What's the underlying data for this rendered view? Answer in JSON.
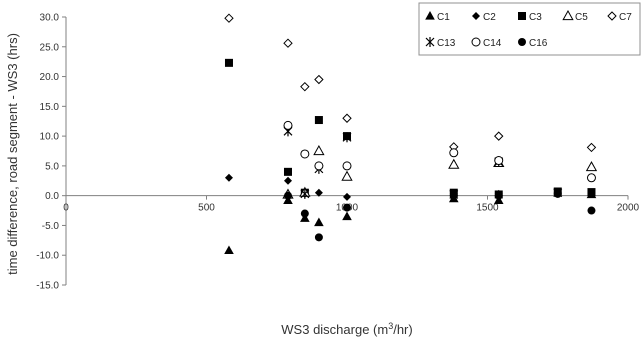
{
  "chart_data": {
    "type": "scatter",
    "xlabel": "WS3 discharge (m³/hr)",
    "ylabel": "time difference, road segment - WS3 (hrs)",
    "xlim": [
      0,
      2000
    ],
    "ylim": [
      -15,
      30
    ],
    "x_ticks": [
      0,
      500,
      1000,
      1500,
      2000
    ],
    "y_ticks": [
      30,
      25,
      20,
      15,
      10,
      5,
      0,
      -5,
      -10,
      -15
    ],
    "x_tick_labels": [
      "0",
      "500",
      "1000",
      "1500",
      "2000"
    ],
    "y_tick_labels": [
      "30.0",
      "25.0",
      "20.0",
      "15.0",
      "10.0",
      "5.0",
      "0.0",
      "-5.0",
      "-10.0",
      "-15.0"
    ],
    "legend_position": "top-right",
    "series": [
      {
        "name": "C1",
        "marker": "triangle-filled",
        "points": [
          [
            580,
            -9.2
          ],
          [
            790,
            -0.8
          ],
          [
            850,
            -3.8
          ],
          [
            900,
            -4.5
          ],
          [
            1000,
            -3.5
          ],
          [
            1380,
            -0.5
          ],
          [
            1540,
            -0.8
          ],
          [
            1870,
            0.2
          ]
        ]
      },
      {
        "name": "C2",
        "marker": "diamond-filled",
        "points": [
          [
            580,
            3.0
          ],
          [
            790,
            2.5
          ],
          [
            850,
            0.3
          ],
          [
            900,
            0.5
          ],
          [
            1000,
            -0.2
          ],
          [
            1380,
            0.3
          ],
          [
            1540,
            0.3
          ],
          [
            1750,
            0.5
          ],
          [
            1870,
            0.5
          ]
        ]
      },
      {
        "name": "C3",
        "marker": "square-filled",
        "points": [
          [
            580,
            22.3
          ],
          [
            790,
            4.0
          ],
          [
            850,
            0.5
          ],
          [
            900,
            12.7
          ],
          [
            1000,
            10.0
          ],
          [
            1380,
            0.5
          ],
          [
            1540,
            0.2
          ],
          [
            1750,
            0.7
          ],
          [
            1870,
            0.6
          ]
        ]
      },
      {
        "name": "C5",
        "marker": "triangle-open",
        "points": [
          [
            790,
            0.2
          ],
          [
            850,
            0.5
          ],
          [
            900,
            7.5
          ],
          [
            1000,
            3.2
          ],
          [
            1380,
            5.2
          ],
          [
            1540,
            5.5
          ],
          [
            1870,
            4.8
          ]
        ]
      },
      {
        "name": "C7",
        "marker": "diamond-open",
        "points": [
          [
            580,
            29.8
          ],
          [
            790,
            25.6
          ],
          [
            850,
            18.3
          ],
          [
            900,
            19.5
          ],
          [
            1000,
            13.0
          ],
          [
            1380,
            8.2
          ],
          [
            1540,
            10.0
          ],
          [
            1870,
            8.1
          ]
        ]
      },
      {
        "name": "C13",
        "marker": "asterisk",
        "points": [
          [
            790,
            10.8
          ],
          [
            850,
            0.3
          ],
          [
            900,
            4.5
          ],
          [
            1000,
            9.8
          ],
          [
            1380,
            0.2
          ],
          [
            1540,
            5.7
          ],
          [
            1750,
            0.5
          ]
        ]
      },
      {
        "name": "C14",
        "marker": "circle-open",
        "points": [
          [
            790,
            11.8
          ],
          [
            850,
            7.0
          ],
          [
            900,
            5.0
          ],
          [
            1000,
            5.0
          ],
          [
            1380,
            7.2
          ],
          [
            1540,
            5.9
          ],
          [
            1870,
            3.0
          ]
        ]
      },
      {
        "name": "C16",
        "marker": "circle-filled",
        "points": [
          [
            790,
            0.0
          ],
          [
            850,
            -3.0
          ],
          [
            900,
            -7.0
          ],
          [
            1000,
            -2.0
          ],
          [
            1380,
            0.0
          ],
          [
            1540,
            0.0
          ],
          [
            1750,
            0.3
          ],
          [
            1870,
            -2.5
          ]
        ]
      }
    ]
  }
}
